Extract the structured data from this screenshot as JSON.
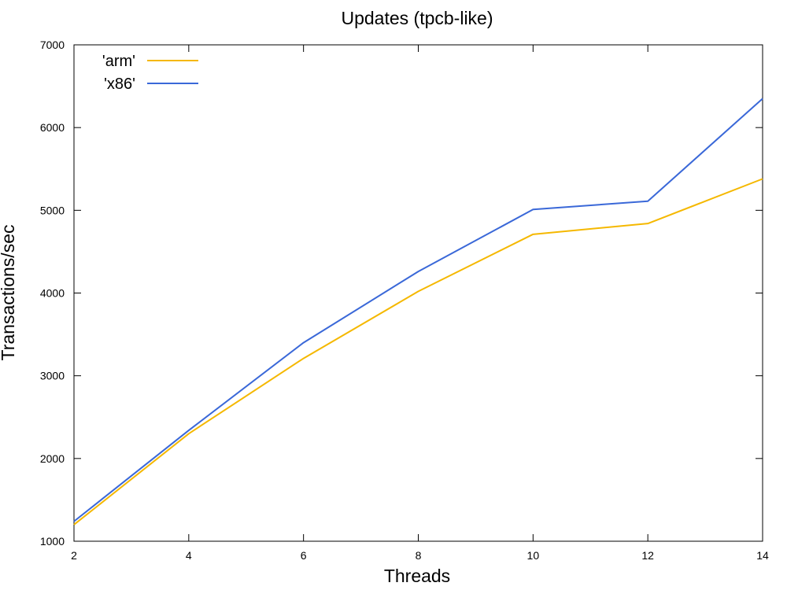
{
  "chart_data": {
    "type": "line",
    "title": "Updates (tpcb-like)",
    "xlabel": "Threads",
    "ylabel": "Transactions/sec",
    "x": [
      2,
      4,
      6,
      8,
      10,
      12,
      14
    ],
    "xlim": [
      2,
      14
    ],
    "ylim": [
      1000,
      7000
    ],
    "xticks": [
      "2",
      "4",
      "6",
      "8",
      "10",
      "12",
      "14"
    ],
    "yticks": [
      "1000",
      "2000",
      "3000",
      "4000",
      "5000",
      "6000",
      "7000"
    ],
    "grid": false,
    "legend_position": "top-left",
    "series": [
      {
        "name": "'arm'",
        "color": "#f5b800",
        "values": [
          1200,
          2300,
          3210,
          4020,
          4710,
          4840,
          5380
        ]
      },
      {
        "name": "'x86'",
        "color": "#3a68d8",
        "values": [
          1240,
          2340,
          3400,
          4260,
          5010,
          5110,
          6350
        ]
      }
    ]
  }
}
